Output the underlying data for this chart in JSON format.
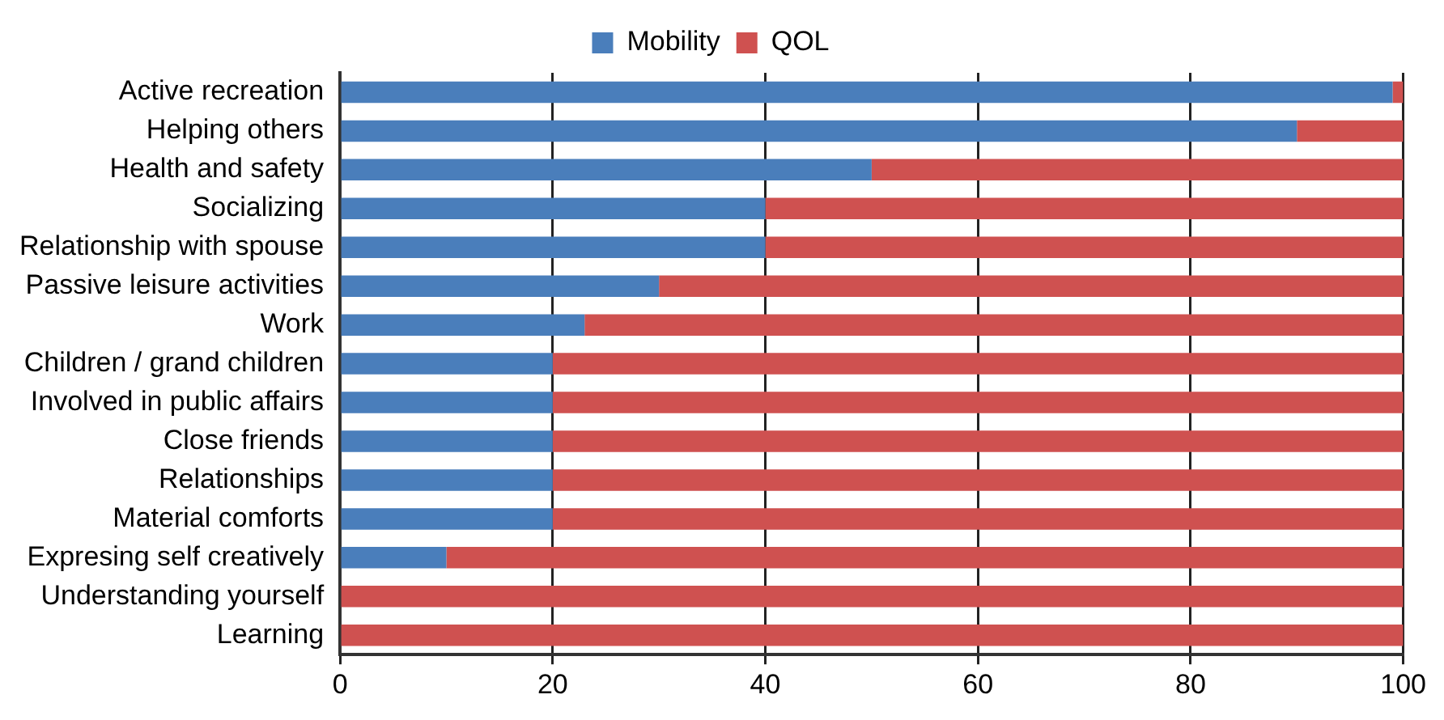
{
  "chart_data": {
    "type": "bar",
    "orientation": "horizontal",
    "stacked": true,
    "categories": [
      "Active recreation",
      "Helping others",
      "Health and safety",
      "Socializing",
      "Relationship with spouse",
      "Passive leisure activities",
      "Work",
      "Children / grand children",
      "Involved in public affairs",
      "Close friends",
      "Relationships",
      "Material comforts",
      "Expresing self creatively",
      "Understanding yourself",
      "Learning"
    ],
    "series": [
      {
        "name": "Mobility",
        "color": "#4a7ebb",
        "values": [
          99,
          90,
          50,
          40,
          40,
          30,
          23,
          20,
          20,
          20,
          20,
          20,
          10,
          0,
          0
        ]
      },
      {
        "name": "QOL",
        "color": "#cf5150",
        "values": [
          1,
          10,
          50,
          60,
          60,
          70,
          77,
          80,
          80,
          80,
          80,
          80,
          90,
          100,
          100
        ]
      }
    ],
    "xlim": [
      0,
      100
    ],
    "xticks": [
      0,
      20,
      40,
      60,
      80,
      100
    ],
    "grid": "x",
    "legend": "top"
  }
}
